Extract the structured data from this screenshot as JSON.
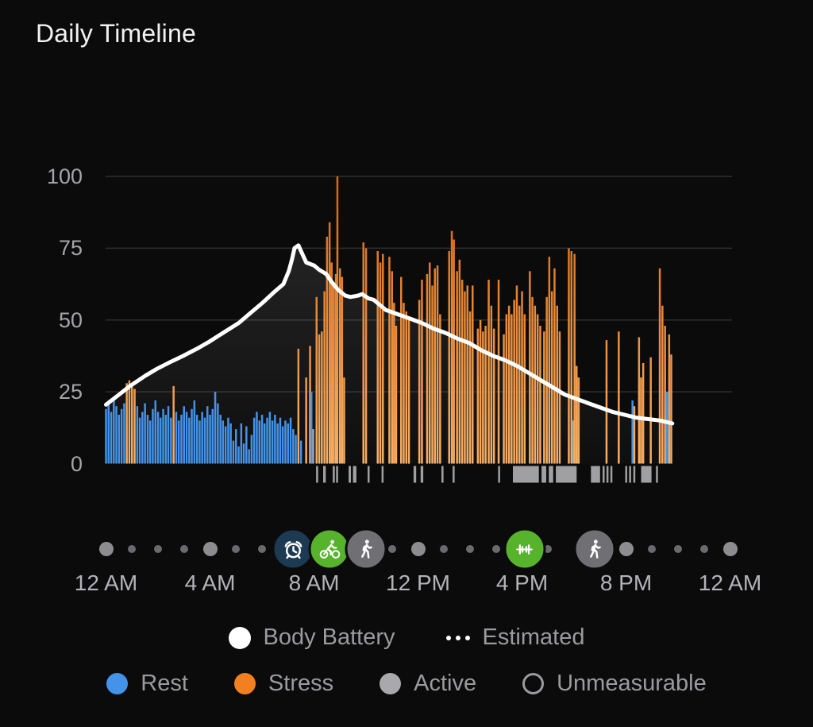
{
  "title": "Daily Timeline",
  "colors": {
    "background": "#0b0b0c",
    "rest": "#4493e9",
    "stress_top": "#d96a10",
    "stress_bottom": "#f8b066",
    "active": "#a0a0a2",
    "body_battery_line": "#ffffff",
    "gridline": "#2f2f31",
    "axis_text": "#a5a5a9",
    "legend_text": "#9b9b9f",
    "dot_minor": "#6b6b6f",
    "dot_major": "#8d8d91",
    "event_alarm_bg": "#1d3a53",
    "event_sport_green_bg": "#57b32c",
    "event_walk_gray_bg": "#707074"
  },
  "chart_data": {
    "type": "bar",
    "title": "Daily Timeline",
    "xlabel": "",
    "ylabel": "",
    "x_axis": {
      "unit": "hours",
      "range": [
        0,
        24
      ],
      "tick_hours": [
        0,
        4,
        8,
        12,
        16,
        20,
        24
      ],
      "tick_labels": [
        "12 AM",
        "4 AM",
        "8 AM",
        "12 PM",
        "4 PM",
        "8 PM",
        "12 AM"
      ]
    },
    "y_axis": {
      "range": [
        0,
        100
      ],
      "ticks": [
        100,
        75,
        50,
        25,
        0
      ],
      "gridline_ticks": [
        100,
        75,
        50,
        25
      ]
    },
    "series_legend": {
      "r": "Rest",
      "s": "Stress",
      "a": "Active"
    },
    "bars": [
      [
        0.0,
        19,
        "r"
      ],
      [
        0.1,
        21,
        "r"
      ],
      [
        0.2,
        18,
        "r"
      ],
      [
        0.3,
        22,
        "r"
      ],
      [
        0.4,
        20,
        "r"
      ],
      [
        0.5,
        17,
        "r"
      ],
      [
        0.6,
        19,
        "r"
      ],
      [
        0.7,
        21,
        "r"
      ],
      [
        0.8,
        28,
        "s"
      ],
      [
        0.9,
        29,
        "s"
      ],
      [
        1.0,
        28,
        "s"
      ],
      [
        1.1,
        26,
        "s"
      ],
      [
        1.2,
        20,
        "r"
      ],
      [
        1.3,
        16,
        "r"
      ],
      [
        1.4,
        18,
        "r"
      ],
      [
        1.5,
        21,
        "r"
      ],
      [
        1.6,
        17,
        "r"
      ],
      [
        1.7,
        15,
        "r"
      ],
      [
        1.8,
        19,
        "r"
      ],
      [
        1.9,
        22,
        "r"
      ],
      [
        2.0,
        18,
        "r"
      ],
      [
        2.1,
        16,
        "r"
      ],
      [
        2.2,
        19,
        "r"
      ],
      [
        2.3,
        17,
        "r"
      ],
      [
        2.4,
        20,
        "r"
      ],
      [
        2.5,
        16,
        "r"
      ],
      [
        2.6,
        27,
        "s"
      ],
      [
        2.7,
        18,
        "r"
      ],
      [
        2.8,
        15,
        "r"
      ],
      [
        2.9,
        17,
        "r"
      ],
      [
        3.0,
        20,
        "r"
      ],
      [
        3.1,
        18,
        "r"
      ],
      [
        3.2,
        16,
        "r"
      ],
      [
        3.3,
        19,
        "r"
      ],
      [
        3.4,
        22,
        "r"
      ],
      [
        3.5,
        17,
        "r"
      ],
      [
        3.6,
        15,
        "r"
      ],
      [
        3.7,
        18,
        "r"
      ],
      [
        3.8,
        16,
        "r"
      ],
      [
        3.9,
        20,
        "r"
      ],
      [
        4.0,
        17,
        "r"
      ],
      [
        4.1,
        19,
        "r"
      ],
      [
        4.2,
        25,
        "r"
      ],
      [
        4.3,
        21,
        "r"
      ],
      [
        4.4,
        17,
        "r"
      ],
      [
        4.5,
        15,
        "r"
      ],
      [
        4.6,
        13,
        "r"
      ],
      [
        4.7,
        16,
        "r"
      ],
      [
        4.8,
        14,
        "r"
      ],
      [
        4.9,
        8,
        "r"
      ],
      [
        5.0,
        12,
        "r"
      ],
      [
        5.1,
        6,
        "r"
      ],
      [
        5.2,
        14,
        "r"
      ],
      [
        5.3,
        7,
        "r"
      ],
      [
        5.4,
        13,
        "r"
      ],
      [
        5.5,
        5,
        "r"
      ],
      [
        5.6,
        10,
        "r"
      ],
      [
        5.7,
        16,
        "r"
      ],
      [
        5.8,
        18,
        "r"
      ],
      [
        5.9,
        15,
        "r"
      ],
      [
        6.0,
        17,
        "r"
      ],
      [
        6.1,
        14,
        "r"
      ],
      [
        6.2,
        16,
        "r"
      ],
      [
        6.3,
        18,
        "r"
      ],
      [
        6.4,
        15,
        "r"
      ],
      [
        6.5,
        17,
        "r"
      ],
      [
        6.6,
        14,
        "r"
      ],
      [
        6.7,
        16,
        "r"
      ],
      [
        6.8,
        13,
        "r"
      ],
      [
        6.9,
        15,
        "r"
      ],
      [
        7.0,
        14,
        "r"
      ],
      [
        7.1,
        16,
        "r"
      ],
      [
        7.2,
        12,
        "r"
      ],
      [
        7.3,
        10,
        "r"
      ],
      [
        7.4,
        40,
        "s"
      ],
      [
        7.5,
        8,
        "r"
      ],
      [
        7.7,
        30,
        "s"
      ],
      [
        7.85,
        41,
        "s"
      ],
      [
        7.9,
        25,
        "r"
      ],
      [
        7.97,
        12,
        "a"
      ],
      [
        8.1,
        58,
        "s"
      ],
      [
        8.2,
        45,
        "s"
      ],
      [
        8.3,
        46,
        "s"
      ],
      [
        8.4,
        60,
        "s"
      ],
      [
        8.5,
        79,
        "s"
      ],
      [
        8.6,
        84,
        "s"
      ],
      [
        8.68,
        70,
        "s"
      ],
      [
        8.76,
        63,
        "s"
      ],
      [
        8.84,
        66,
        "s"
      ],
      [
        8.9,
        100,
        "s"
      ],
      [
        9.0,
        68,
        "s"
      ],
      [
        9.08,
        65,
        "s"
      ],
      [
        9.16,
        30,
        "s"
      ],
      [
        9.9,
        77,
        "s"
      ],
      [
        10.0,
        75,
        "s"
      ],
      [
        10.45,
        74,
        "s"
      ],
      [
        10.55,
        70,
        "s"
      ],
      [
        10.65,
        73,
        "s"
      ],
      [
        10.9,
        72,
        "s"
      ],
      [
        11.0,
        67,
        "s"
      ],
      [
        11.08,
        56,
        "s"
      ],
      [
        11.16,
        48,
        "s"
      ],
      [
        11.35,
        65,
        "s"
      ],
      [
        11.45,
        56,
        "s"
      ],
      [
        11.55,
        53,
        "s"
      ],
      [
        11.65,
        50,
        "s"
      ],
      [
        12.05,
        57,
        "s"
      ],
      [
        12.15,
        64,
        "s"
      ],
      [
        12.35,
        66,
        "s"
      ],
      [
        12.45,
        70,
        "s"
      ],
      [
        12.55,
        62,
        "s"
      ],
      [
        12.65,
        68,
        "s"
      ],
      [
        12.75,
        69,
        "s"
      ],
      [
        12.85,
        52,
        "s"
      ],
      [
        13.2,
        74,
        "s"
      ],
      [
        13.3,
        81,
        "s"
      ],
      [
        13.38,
        78,
        "s"
      ],
      [
        13.5,
        67,
        "s"
      ],
      [
        13.6,
        71,
        "s"
      ],
      [
        13.7,
        64,
        "s"
      ],
      [
        13.8,
        60,
        "s"
      ],
      [
        13.9,
        62,
        "s"
      ],
      [
        14.0,
        53,
        "s"
      ],
      [
        14.1,
        62,
        "s"
      ],
      [
        14.3,
        47,
        "s"
      ],
      [
        14.4,
        50,
        "s"
      ],
      [
        14.5,
        46,
        "s"
      ],
      [
        14.6,
        48,
        "s"
      ],
      [
        14.72,
        64,
        "s"
      ],
      [
        14.82,
        55,
        "s"
      ],
      [
        14.92,
        47,
        "s"
      ],
      [
        15.1,
        64,
        "s"
      ],
      [
        15.3,
        45,
        "s"
      ],
      [
        15.4,
        52,
        "s"
      ],
      [
        15.5,
        55,
        "s"
      ],
      [
        15.6,
        52,
        "s"
      ],
      [
        15.7,
        57,
        "s"
      ],
      [
        15.8,
        62,
        "s"
      ],
      [
        15.9,
        55,
        "s"
      ],
      [
        16.0,
        60,
        "s"
      ],
      [
        16.1,
        52,
        "s"
      ],
      [
        16.3,
        67,
        "s"
      ],
      [
        16.4,
        58,
        "s"
      ],
      [
        16.5,
        55,
        "s"
      ],
      [
        16.6,
        52,
        "s"
      ],
      [
        16.7,
        48,
        "s"
      ],
      [
        16.85,
        46,
        "s"
      ],
      [
        16.95,
        58,
        "s"
      ],
      [
        17.05,
        72,
        "s"
      ],
      [
        17.15,
        60,
        "s"
      ],
      [
        17.25,
        68,
        "s"
      ],
      [
        17.35,
        55,
        "s"
      ],
      [
        17.45,
        46,
        "s"
      ],
      [
        17.8,
        75,
        "s"
      ],
      [
        17.9,
        74,
        "s"
      ],
      [
        17.96,
        15,
        "a"
      ],
      [
        18.02,
        73,
        "s"
      ],
      [
        18.1,
        34,
        "s"
      ],
      [
        18.18,
        30,
        "s"
      ],
      [
        19.25,
        43,
        "s"
      ],
      [
        19.72,
        46,
        "s"
      ],
      [
        20.25,
        22,
        "r"
      ],
      [
        20.32,
        20,
        "s"
      ],
      [
        20.5,
        44,
        "s"
      ],
      [
        20.58,
        30,
        "s"
      ],
      [
        20.66,
        35,
        "s"
      ],
      [
        20.95,
        37,
        "s"
      ],
      [
        21.3,
        68,
        "s"
      ],
      [
        21.4,
        55,
        "s"
      ],
      [
        21.5,
        48,
        "s"
      ],
      [
        21.58,
        25,
        "r"
      ],
      [
        21.66,
        45,
        "s"
      ],
      [
        21.74,
        38,
        "s"
      ]
    ],
    "body_battery_line": [
      [
        0,
        20.5
      ],
      [
        0.5,
        24
      ],
      [
        0.92,
        27
      ],
      [
        1.5,
        30.5
      ],
      [
        1.96,
        33
      ],
      [
        2.5,
        35.5
      ],
      [
        2.97,
        37.5
      ],
      [
        3.5,
        40
      ],
      [
        3.98,
        42.5
      ],
      [
        4.5,
        45.5
      ],
      [
        5.11,
        49
      ],
      [
        5.5,
        52
      ],
      [
        6.02,
        56
      ],
      [
        6.5,
        60
      ],
      [
        6.82,
        62.5
      ],
      [
        7.03,
        67
      ],
      [
        7.15,
        71
      ],
      [
        7.25,
        75
      ],
      [
        7.4,
        76
      ],
      [
        7.55,
        73
      ],
      [
        7.7,
        70
      ],
      [
        8.0,
        69
      ],
      [
        8.2,
        67.5
      ],
      [
        8.47,
        66
      ],
      [
        8.7,
        63
      ],
      [
        8.93,
        60.5
      ],
      [
        9.2,
        58.5
      ],
      [
        9.4,
        58
      ],
      [
        9.7,
        58.5
      ],
      [
        9.85,
        59
      ],
      [
        10.1,
        57.5
      ],
      [
        10.3,
        57
      ],
      [
        10.76,
        53.5
      ],
      [
        11.22,
        52
      ],
      [
        11.68,
        50.5
      ],
      [
        12.14,
        49
      ],
      [
        12.6,
        47
      ],
      [
        13.06,
        45.5
      ],
      [
        13.52,
        43.5
      ],
      [
        13.97,
        42
      ],
      [
        14.43,
        39.5
      ],
      [
        14.89,
        37.5
      ],
      [
        15.35,
        36
      ],
      [
        15.81,
        34
      ],
      [
        16.27,
        31.5
      ],
      [
        16.73,
        29
      ],
      [
        17.19,
        26.5
      ],
      [
        17.65,
        24
      ],
      [
        18.11,
        22.5
      ],
      [
        18.56,
        21
      ],
      [
        19.02,
        19.5
      ],
      [
        19.48,
        18
      ],
      [
        19.94,
        17
      ],
      [
        20.4,
        16
      ],
      [
        20.86,
        15.5
      ],
      [
        21.32,
        15
      ],
      [
        21.78,
        14
      ]
    ],
    "active_segments": [
      [
        8.08,
        8.16
      ],
      [
        8.35,
        8.45
      ],
      [
        8.72,
        8.8
      ],
      [
        8.85,
        8.92
      ],
      [
        9.33,
        9.42
      ],
      [
        9.5,
        9.63
      ],
      [
        10.06,
        10.12
      ],
      [
        10.6,
        10.66
      ],
      [
        11.83,
        11.93
      ],
      [
        12.1,
        12.2
      ],
      [
        12.9,
        12.98
      ],
      [
        13.33,
        13.4
      ],
      [
        15.08,
        15.15
      ],
      [
        15.65,
        16.65
      ],
      [
        16.75,
        16.93
      ],
      [
        17.03,
        17.2
      ],
      [
        17.3,
        18.1
      ],
      [
        18.65,
        19.0
      ],
      [
        19.1,
        19.16
      ],
      [
        19.25,
        19.32
      ],
      [
        19.4,
        19.47
      ],
      [
        19.97,
        20.03
      ],
      [
        20.12,
        20.18
      ],
      [
        20.28,
        20.35
      ],
      [
        20.58,
        20.98
      ],
      [
        21.15,
        21.22
      ]
    ],
    "timeline": {
      "minor_dot_hours": [
        1,
        2,
        3,
        5,
        6,
        11,
        13,
        14,
        15,
        17,
        21,
        22,
        23
      ],
      "major_dot_hours": [
        0,
        4,
        12,
        20,
        24
      ],
      "events": [
        {
          "h": 7.2,
          "icon": "alarm-icon",
          "bg": "#1d3a53"
        },
        {
          "h": 8.6,
          "icon": "cycling-icon",
          "bg": "#57b32c"
        },
        {
          "h": 10.0,
          "icon": "walking-icon",
          "bg": "#707074"
        },
        {
          "h": 16.1,
          "icon": "strength-icon",
          "bg": "#57b32c"
        },
        {
          "h": 18.8,
          "icon": "walking-icon",
          "bg": "#707074"
        }
      ]
    }
  },
  "legend_primary": {
    "items": [
      {
        "icon": "body-battery-dot",
        "label": "Body Battery"
      },
      {
        "icon": "estimated-dots",
        "label": "Estimated"
      }
    ]
  },
  "legend_status": {
    "items": [
      {
        "label": "Rest",
        "color": "#4493e9",
        "outline": false
      },
      {
        "label": "Stress",
        "color": "#f28020",
        "outline": false
      },
      {
        "label": "Active",
        "color": "#a9a9ad",
        "outline": false
      },
      {
        "label": "Unmeasurable",
        "color": "transparent",
        "outline": true
      }
    ]
  }
}
